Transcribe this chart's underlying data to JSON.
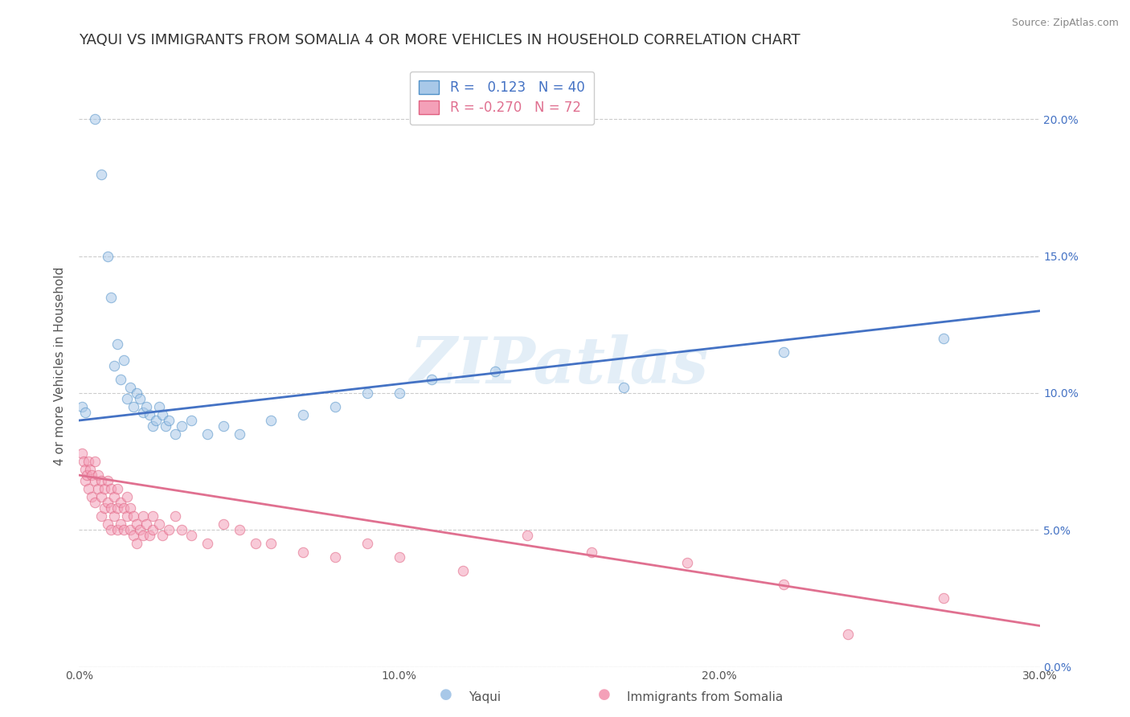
{
  "title": "YAQUI VS IMMIGRANTS FROM SOMALIA 4 OR MORE VEHICLES IN HOUSEHOLD CORRELATION CHART",
  "source": "Source: ZipAtlas.com",
  "ylabel": "4 or more Vehicles in Household",
  "xmin": 0.0,
  "xmax": 30.0,
  "ymin": 0.0,
  "ymax": 22.0,
  "watermark": "ZIPatlas",
  "legend_blue_label": "Yaqui",
  "legend_pink_label": "Immigrants from Somalia",
  "blue_R": 0.123,
  "blue_N": 40,
  "pink_R": -0.27,
  "pink_N": 72,
  "blue_color": "#a8c8e8",
  "pink_color": "#f4a0b8",
  "blue_edge_color": "#5090c8",
  "pink_edge_color": "#e06080",
  "blue_line_color": "#4472c4",
  "pink_line_color": "#e07090",
  "blue_scatter": [
    [
      0.1,
      9.5
    ],
    [
      0.2,
      9.3
    ],
    [
      0.5,
      20.0
    ],
    [
      0.7,
      18.0
    ],
    [
      0.9,
      15.0
    ],
    [
      1.0,
      13.5
    ],
    [
      1.1,
      11.0
    ],
    [
      1.2,
      11.8
    ],
    [
      1.3,
      10.5
    ],
    [
      1.4,
      11.2
    ],
    [
      1.5,
      9.8
    ],
    [
      1.6,
      10.2
    ],
    [
      1.7,
      9.5
    ],
    [
      1.8,
      10.0
    ],
    [
      1.9,
      9.8
    ],
    [
      2.0,
      9.3
    ],
    [
      2.1,
      9.5
    ],
    [
      2.2,
      9.2
    ],
    [
      2.3,
      8.8
    ],
    [
      2.4,
      9.0
    ],
    [
      2.5,
      9.5
    ],
    [
      2.6,
      9.2
    ],
    [
      2.7,
      8.8
    ],
    [
      2.8,
      9.0
    ],
    [
      3.0,
      8.5
    ],
    [
      3.2,
      8.8
    ],
    [
      3.5,
      9.0
    ],
    [
      4.0,
      8.5
    ],
    [
      4.5,
      8.8
    ],
    [
      5.0,
      8.5
    ],
    [
      6.0,
      9.0
    ],
    [
      7.0,
      9.2
    ],
    [
      8.0,
      9.5
    ],
    [
      9.0,
      10.0
    ],
    [
      10.0,
      10.0
    ],
    [
      11.0,
      10.5
    ],
    [
      13.0,
      10.8
    ],
    [
      17.0,
      10.2
    ],
    [
      22.0,
      11.5
    ],
    [
      27.0,
      12.0
    ]
  ],
  "pink_scatter": [
    [
      0.1,
      7.8
    ],
    [
      0.15,
      7.5
    ],
    [
      0.2,
      7.2
    ],
    [
      0.2,
      6.8
    ],
    [
      0.25,
      7.0
    ],
    [
      0.3,
      7.5
    ],
    [
      0.3,
      6.5
    ],
    [
      0.35,
      7.2
    ],
    [
      0.4,
      7.0
    ],
    [
      0.4,
      6.2
    ],
    [
      0.5,
      7.5
    ],
    [
      0.5,
      6.8
    ],
    [
      0.5,
      6.0
    ],
    [
      0.6,
      7.0
    ],
    [
      0.6,
      6.5
    ],
    [
      0.7,
      6.8
    ],
    [
      0.7,
      6.2
    ],
    [
      0.7,
      5.5
    ],
    [
      0.8,
      6.5
    ],
    [
      0.8,
      5.8
    ],
    [
      0.9,
      6.8
    ],
    [
      0.9,
      6.0
    ],
    [
      0.9,
      5.2
    ],
    [
      1.0,
      6.5
    ],
    [
      1.0,
      5.8
    ],
    [
      1.0,
      5.0
    ],
    [
      1.1,
      6.2
    ],
    [
      1.1,
      5.5
    ],
    [
      1.2,
      6.5
    ],
    [
      1.2,
      5.8
    ],
    [
      1.2,
      5.0
    ],
    [
      1.3,
      6.0
    ],
    [
      1.3,
      5.2
    ],
    [
      1.4,
      5.8
    ],
    [
      1.4,
      5.0
    ],
    [
      1.5,
      6.2
    ],
    [
      1.5,
      5.5
    ],
    [
      1.6,
      5.8
    ],
    [
      1.6,
      5.0
    ],
    [
      1.7,
      5.5
    ],
    [
      1.7,
      4.8
    ],
    [
      1.8,
      5.2
    ],
    [
      1.8,
      4.5
    ],
    [
      1.9,
      5.0
    ],
    [
      2.0,
      5.5
    ],
    [
      2.0,
      4.8
    ],
    [
      2.1,
      5.2
    ],
    [
      2.2,
      4.8
    ],
    [
      2.3,
      5.5
    ],
    [
      2.3,
      5.0
    ],
    [
      2.5,
      5.2
    ],
    [
      2.6,
      4.8
    ],
    [
      2.8,
      5.0
    ],
    [
      3.0,
      5.5
    ],
    [
      3.2,
      5.0
    ],
    [
      3.5,
      4.8
    ],
    [
      4.0,
      4.5
    ],
    [
      4.5,
      5.2
    ],
    [
      5.0,
      5.0
    ],
    [
      5.5,
      4.5
    ],
    [
      6.0,
      4.5
    ],
    [
      7.0,
      4.2
    ],
    [
      8.0,
      4.0
    ],
    [
      9.0,
      4.5
    ],
    [
      10.0,
      4.0
    ],
    [
      12.0,
      3.5
    ],
    [
      14.0,
      4.8
    ],
    [
      16.0,
      4.2
    ],
    [
      19.0,
      3.8
    ],
    [
      22.0,
      3.0
    ],
    [
      24.0,
      1.2
    ],
    [
      27.0,
      2.5
    ]
  ],
  "ytick_labels": [
    "0.0%",
    "5.0%",
    "10.0%",
    "15.0%",
    "20.0%"
  ],
  "ytick_values": [
    0.0,
    5.0,
    10.0,
    15.0,
    20.0
  ],
  "xtick_labels": [
    "0.0%",
    "10.0%",
    "20.0%",
    "30.0%"
  ],
  "xtick_values": [
    0.0,
    10.0,
    20.0,
    30.0
  ],
  "background_color": "#ffffff",
  "grid_color": "#cccccc",
  "title_fontsize": 13,
  "axis_fontsize": 11,
  "tick_fontsize": 10,
  "scatter_size": 80,
  "scatter_alpha": 0.55,
  "scatter_linewidth": 0.8
}
